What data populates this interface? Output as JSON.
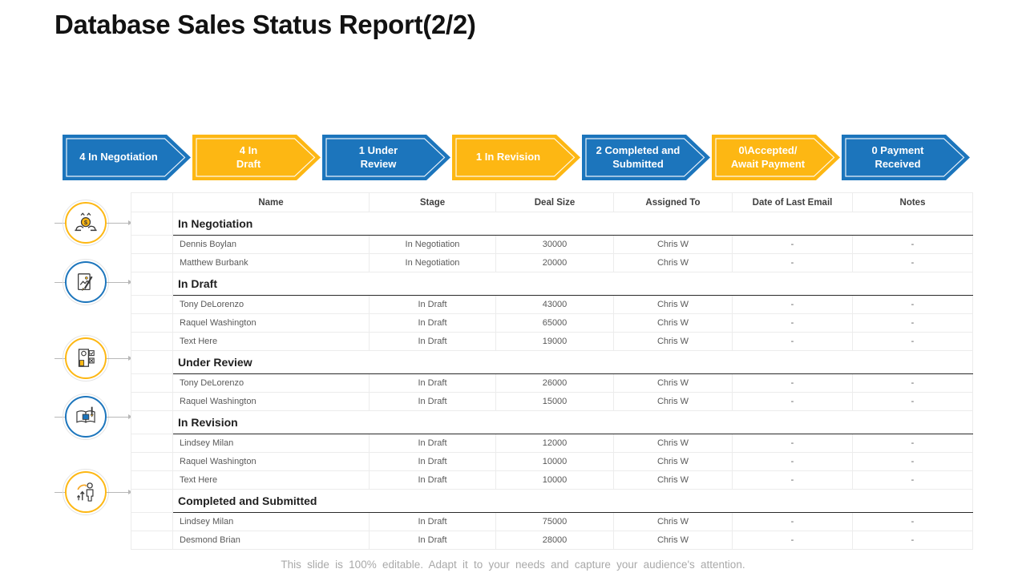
{
  "slide": {
    "title": "Database Sales Status Report(2/2)",
    "footer": "This slide is 100% editable. Adapt it to your needs and capture your audience's attention."
  },
  "colors": {
    "blue": "#1C75BC",
    "yellow": "#FDB713",
    "section_text": "#1F1F1F",
    "data_text": "#595959",
    "footer_text": "#A9A9A9"
  },
  "pipeline": [
    {
      "label": "4 In Negotiation",
      "color": "#1C75BC"
    },
    {
      "label": "4 In\nDraft",
      "color": "#FDB713"
    },
    {
      "label": "1 Under\nReview",
      "color": "#1C75BC"
    },
    {
      "label": "1 In Revision",
      "color": "#FDB713"
    },
    {
      "label": "2 Completed and\nSubmitted",
      "color": "#1C75BC"
    },
    {
      "label": "0\\Accepted/\nAwait Payment",
      "color": "#FDB713"
    },
    {
      "label": "0 Payment\nReceived",
      "color": "#1C75BC"
    }
  ],
  "table": {
    "columns": [
      "Name",
      "Stage",
      "Deal Size",
      "Assigned To",
      "Date of Last Email",
      "Notes"
    ],
    "sections": [
      {
        "title": "In Negotiation",
        "icon": "coin-hands-icon",
        "ring": "#FDB713",
        "rows": [
          [
            "Dennis Boylan",
            "In Negotiation",
            "30000",
            "Chris W",
            "-",
            "-"
          ],
          [
            "Matthew Burbank",
            "In Negotiation",
            "20000",
            "Chris W",
            "-",
            "-"
          ]
        ]
      },
      {
        "title": "In Draft",
        "icon": "draft-document-icon",
        "ring": "#1C75BC",
        "rows": [
          [
            "Tony DeLorenzo",
            "In Draft",
            "43000",
            "Chris W",
            "-",
            "-"
          ],
          [
            "Raquel Washington",
            "In Draft",
            "65000",
            "Chris W",
            "-",
            "-"
          ],
          [
            "Text Here",
            "In Draft",
            "19000",
            "Chris W",
            "-",
            "-"
          ]
        ]
      },
      {
        "title": "Under Review",
        "icon": "review-checklist-icon",
        "ring": "#FDB713",
        "rows": [
          [
            "Tony DeLorenzo",
            "In Draft",
            "26000",
            "Chris W",
            "-",
            "-"
          ],
          [
            "Raquel Washington",
            "In Draft",
            "15000",
            "Chris W",
            "-",
            "-"
          ]
        ]
      },
      {
        "title": "In Revision",
        "icon": "revision-book-icon",
        "ring": "#1C75BC",
        "rows": [
          [
            "Lindsey Milan",
            "In Draft",
            "12000",
            "Chris W",
            "-",
            "-"
          ],
          [
            "Raquel Washington",
            "In Draft",
            "10000",
            "Chris W",
            "-",
            "-"
          ],
          [
            "Text Here",
            "In Draft",
            "10000",
            "Chris W",
            "-",
            "-"
          ]
        ]
      },
      {
        "title": "Completed and Submitted",
        "icon": "growth-person-icon",
        "ring": "#FDB713",
        "rows": [
          [
            "Lindsey Milan",
            "In Draft",
            "75000",
            "Chris W",
            "-",
            "-"
          ],
          [
            "Desmond Brian",
            "In Draft",
            "28000",
            "Chris W",
            "-",
            "-"
          ]
        ]
      }
    ]
  }
}
